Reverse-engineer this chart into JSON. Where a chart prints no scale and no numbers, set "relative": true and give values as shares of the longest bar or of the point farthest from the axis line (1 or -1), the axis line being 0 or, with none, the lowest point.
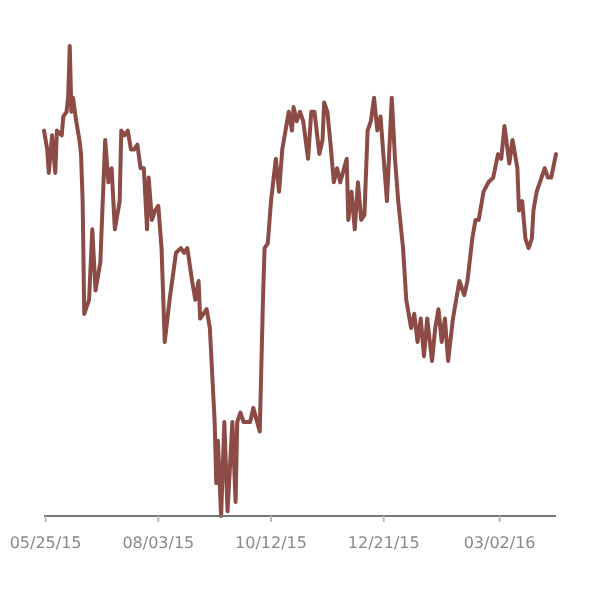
{
  "chart_data": {
    "type": "line",
    "relative": true,
    "line_style": "solid",
    "marker": "none",
    "xlim": [
      "2015-05-24",
      "2016-04-06"
    ],
    "xticks": [
      {
        "value": "2015-05-25",
        "label": "05/25/15"
      },
      {
        "value": "2015-08-03",
        "label": "08/03/15"
      },
      {
        "value": "2015-10-12",
        "label": "10/12/15"
      },
      {
        "value": "2015-12-21",
        "label": "12/21/15"
      },
      {
        "value": "2016-03-02",
        "label": "03/02/16"
      }
    ],
    "series": [
      {
        "color": "#8c4b45",
        "x": [
          "2015-05-24",
          "2015-05-26",
          "2015-05-27",
          "2015-05-29",
          "2015-05-31",
          "2015-06-01",
          "2015-06-04",
          "2015-06-05",
          "2015-06-07",
          "2015-06-08",
          "2015-06-09",
          "2015-06-10",
          "2015-06-11",
          "2015-06-13",
          "2015-06-15",
          "2015-06-16",
          "2015-06-17",
          "2015-06-18",
          "2015-06-21",
          "2015-06-23",
          "2015-06-25",
          "2015-06-28",
          "2015-07-01",
          "2015-07-03",
          "2015-07-05",
          "2015-07-07",
          "2015-07-10",
          "2015-07-11",
          "2015-07-13",
          "2015-07-15",
          "2015-07-17",
          "2015-07-19",
          "2015-07-21",
          "2015-07-23",
          "2015-07-25",
          "2015-07-27",
          "2015-07-28",
          "2015-07-30",
          "2015-08-01",
          "2015-08-03",
          "2015-08-05",
          "2015-08-06",
          "2015-08-07",
          "2015-08-10",
          "2015-08-14",
          "2015-08-17",
          "2015-08-19",
          "2015-08-21",
          "2015-08-24",
          "2015-08-26",
          "2015-08-28",
          "2015-08-29",
          "2015-09-02",
          "2015-09-04",
          "2015-09-07",
          "2015-09-08",
          "2015-09-09",
          "2015-09-11",
          "2015-09-13",
          "2015-09-15",
          "2015-09-18",
          "2015-09-20",
          "2015-09-21",
          "2015-09-23",
          "2015-09-25",
          "2015-09-27",
          "2015-09-29",
          "2015-10-01",
          "2015-10-05",
          "2015-10-07",
          "2015-10-08",
          "2015-10-10",
          "2015-10-12",
          "2015-10-15",
          "2015-10-17",
          "2015-10-19",
          "2015-10-21",
          "2015-10-23",
          "2015-10-25",
          "2015-10-26",
          "2015-10-28",
          "2015-10-30",
          "2015-11-01",
          "2015-11-04",
          "2015-11-06",
          "2015-11-08",
          "2015-11-11",
          "2015-11-13",
          "2015-11-14",
          "2015-11-16",
          "2015-11-18",
          "2015-11-20",
          "2015-11-22",
          "2015-11-24",
          "2015-11-28",
          "2015-11-29",
          "2015-12-01",
          "2015-12-03",
          "2015-12-05",
          "2015-12-07",
          "2015-12-09",
          "2015-12-11",
          "2015-12-13",
          "2015-12-15",
          "2015-12-17",
          "2015-12-19",
          "2015-12-21",
          "2015-12-23",
          "2015-12-26",
          "2015-12-28",
          "2015-12-30",
          "2016-01-02",
          "2016-01-04",
          "2016-01-05",
          "2016-01-07",
          "2016-01-09",
          "2016-01-11",
          "2016-01-13",
          "2016-01-15",
          "2016-01-17",
          "2016-01-20",
          "2016-01-22",
          "2016-01-24",
          "2016-01-26",
          "2016-01-28",
          "2016-01-30",
          "2016-02-02",
          "2016-02-06",
          "2016-02-09",
          "2016-02-11",
          "2016-02-14",
          "2016-02-16",
          "2016-02-18",
          "2016-02-21",
          "2016-02-24",
          "2016-02-27",
          "2016-03-01",
          "2016-03-03",
          "2016-03-05",
          "2016-03-08",
          "2016-03-10",
          "2016-03-13",
          "2016-03-14",
          "2016-03-16",
          "2016-03-18",
          "2016-03-20",
          "2016-03-22",
          "2016-03-23",
          "2016-03-25",
          "2016-03-27",
          "2016-03-30",
          "2016-04-01",
          "2016-04-03",
          "2016-04-06"
        ],
        "values": [
          0.82,
          0.78,
          0.73,
          0.81,
          0.73,
          0.82,
          0.81,
          0.85,
          0.86,
          0.89,
          1,
          0.86,
          0.89,
          0.84,
          0.8,
          0.77,
          0.67,
          0.43,
          0.46,
          0.61,
          0.48,
          0.54,
          0.8,
          0.71,
          0.74,
          0.61,
          0.67,
          0.82,
          0.81,
          0.82,
          0.78,
          0.78,
          0.79,
          0.74,
          0.74,
          0.61,
          0.72,
          0.63,
          0.65,
          0.66,
          0.57,
          0.47,
          0.37,
          0.46,
          0.56,
          0.57,
          0.56,
          0.57,
          0.5,
          0.46,
          0.5,
          0.42,
          0.44,
          0.4,
          0.2,
          0.07,
          0.16,
          0,
          0.2,
          0.01,
          0.2,
          0.03,
          0.2,
          0.22,
          0.2,
          0.2,
          0.2,
          0.23,
          0.18,
          0.46,
          0.57,
          0.58,
          0.67,
          0.76,
          0.69,
          0.78,
          0.82,
          0.86,
          0.82,
          0.87,
          0.84,
          0.86,
          0.84,
          0.76,
          0.86,
          0.86,
          0.77,
          0.8,
          0.88,
          0.86,
          0.79,
          0.71,
          0.74,
          0.71,
          0.76,
          0.63,
          0.69,
          0.61,
          0.71,
          0.63,
          0.64,
          0.82,
          0.84,
          0.89,
          0.82,
          0.85,
          0.76,
          0.67,
          0.89,
          0.76,
          0.67,
          0.57,
          0.46,
          0.44,
          0.4,
          0.43,
          0.37,
          0.42,
          0.34,
          0.42,
          0.33,
          0.4,
          0.44,
          0.37,
          0.42,
          0.33,
          0.42,
          0.5,
          0.47,
          0.5,
          0.59,
          0.63,
          0.63,
          0.69,
          0.71,
          0.72,
          0.77,
          0.76,
          0.83,
          0.75,
          0.8,
          0.74,
          0.65,
          0.67,
          0.59,
          0.57,
          0.59,
          0.65,
          0.69,
          0.71,
          0.74,
          0.72,
          0.72,
          0.77
        ]
      }
    ]
  }
}
